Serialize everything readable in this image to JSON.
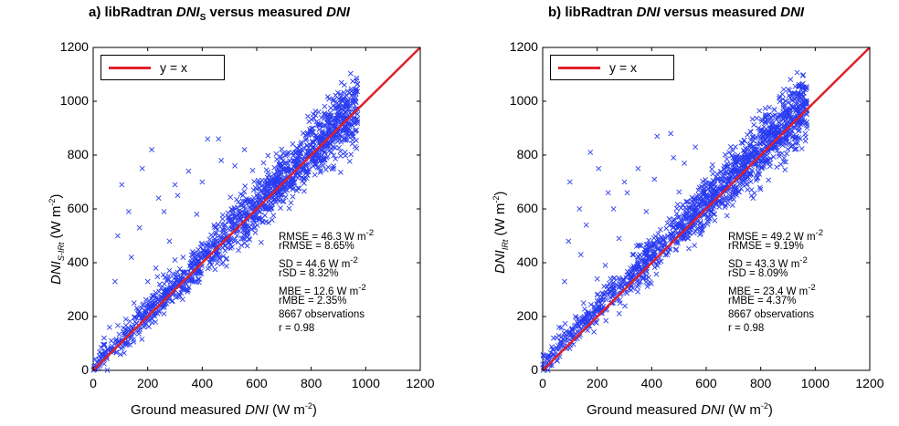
{
  "colors": {
    "points": "#2a3cf0",
    "line": "#e0202a"
  },
  "chart_data": [
    {
      "type": "scatter",
      "title_prefix": "a) libRadtran ",
      "title_var": "DNI",
      "title_sub": "S",
      "title_mid": " versus measured ",
      "title_var2": "DNI",
      "xlabel_prefix": "Ground measured ",
      "xlabel_var": "DNI",
      "xlabel_unit": " (W m",
      "xlabel_exp": "-2",
      "xlabel_close": ")",
      "ylabel_var": "DNI",
      "ylabel_sub": "S-IRt",
      "ylabel_unit": " (W m",
      "ylabel_exp": "-2",
      "ylabel_close": ")",
      "xlim": [
        0,
        1200
      ],
      "ylim": [
        0,
        1200
      ],
      "xticks": [
        "0",
        "200",
        "400",
        "600",
        "800",
        "1000",
        "1200"
      ],
      "yticks": [
        "0",
        "200",
        "400",
        "600",
        "800",
        "1000",
        "1200"
      ],
      "legend": "y = x",
      "grid": false,
      "stats": [
        "RMSE = 46.3 W m",
        "rRMSE = 8.65%",
        "SD = 44.6 W m",
        "rSD = 8.32%",
        "MBE = 12.6 W m",
        "rMBE = 2.35%",
        "8667 observations",
        "r = 0.98"
      ],
      "stats_exp": "-2",
      "n_observations": 8667,
      "bias": 12.6,
      "spread": 40,
      "outliers": [
        [
          105,
          690
        ],
        [
          180,
          750
        ],
        [
          215,
          820
        ],
        [
          240,
          640
        ],
        [
          170,
          530
        ],
        [
          90,
          500
        ],
        [
          130,
          590
        ],
        [
          300,
          690
        ],
        [
          350,
          740
        ],
        [
          420,
          860
        ],
        [
          460,
          860
        ],
        [
          470,
          780
        ],
        [
          200,
          330
        ],
        [
          140,
          420
        ],
        [
          80,
          330
        ],
        [
          260,
          590
        ],
        [
          310,
          650
        ],
        [
          380,
          580
        ],
        [
          60,
          160
        ],
        [
          150,
          250
        ],
        [
          230,
          380
        ],
        [
          120,
          190
        ],
        [
          40,
          120
        ],
        [
          330,
          420
        ],
        [
          280,
          480
        ],
        [
          520,
          760
        ],
        [
          555,
          820
        ],
        [
          400,
          700
        ]
      ]
    },
    {
      "type": "scatter",
      "title_prefix": "b) libRadtran ",
      "title_var": "DNI",
      "title_sub": "",
      "title_mid": " versus measured ",
      "title_var2": "DNI",
      "xlabel_prefix": "Ground measured ",
      "xlabel_var": "DNI",
      "xlabel_unit": " (W m",
      "xlabel_exp": "-2",
      "xlabel_close": ")",
      "ylabel_var": "DNI",
      "ylabel_sub": "IRt",
      "ylabel_unit": " (W m",
      "ylabel_exp": "-2",
      "ylabel_close": ")",
      "xlim": [
        0,
        1200
      ],
      "ylim": [
        0,
        1200
      ],
      "xticks": [
        "0",
        "200",
        "400",
        "600",
        "800",
        "1000",
        "1200"
      ],
      "yticks": [
        "0",
        "200",
        "400",
        "600",
        "800",
        "1000",
        "1200"
      ],
      "legend": "y = x",
      "grid": false,
      "stats": [
        "RMSE = 49.2 W m",
        "rRMSE = 9.19%",
        "SD = 43.3 W m",
        "rSD = 8.09%",
        "MBE = 23.4 W m",
        "rMBE = 4.37%",
        "8667 observations",
        "r = 0.98"
      ],
      "stats_exp": "-2",
      "n_observations": 8667,
      "bias": 23.4,
      "spread": 40,
      "outliers": [
        [
          100,
          700
        ],
        [
          175,
          810
        ],
        [
          205,
          750
        ],
        [
          240,
          660
        ],
        [
          160,
          540
        ],
        [
          95,
          480
        ],
        [
          135,
          600
        ],
        [
          300,
          700
        ],
        [
          350,
          750
        ],
        [
          420,
          870
        ],
        [
          470,
          880
        ],
        [
          480,
          790
        ],
        [
          200,
          340
        ],
        [
          140,
          430
        ],
        [
          80,
          330
        ],
        [
          260,
          600
        ],
        [
          310,
          660
        ],
        [
          380,
          590
        ],
        [
          60,
          160
        ],
        [
          150,
          250
        ],
        [
          230,
          390
        ],
        [
          120,
          200
        ],
        [
          40,
          120
        ],
        [
          330,
          430
        ],
        [
          280,
          490
        ],
        [
          520,
          770
        ],
        [
          560,
          830
        ],
        [
          410,
          710
        ]
      ]
    }
  ]
}
